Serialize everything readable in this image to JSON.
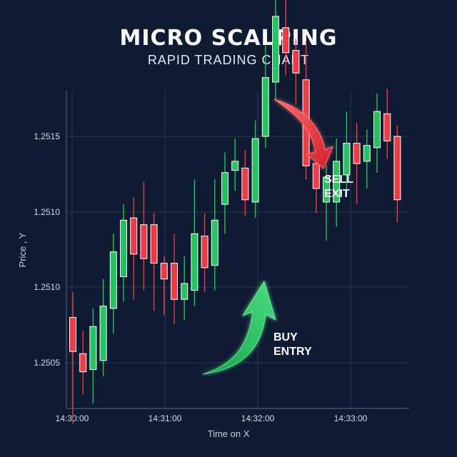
{
  "chart_data": {
    "type": "candlestick",
    "title": "MICRO SCALPING",
    "subtitle": "RAPID TRADING CHART",
    "xlabel": "Time on X",
    "ylabel": "Price , Y",
    "x_ticks": [
      "14:30:00",
      "14:31:00",
      "14:32:00",
      "14:33:00"
    ],
    "y_ticks": [
      "1.2505",
      "1.2510",
      "1.2510",
      "1.2515"
    ],
    "grid": true,
    "colors": {
      "up": "#22c55e",
      "down": "#ef3b45",
      "background": "#0f1b33",
      "grid": "#2a3752"
    },
    "annotations": [
      {
        "text": [
          "SELL",
          "EXIT"
        ],
        "color": "#ef3b45"
      },
      {
        "text": [
          "BUY",
          "ENTRY"
        ],
        "color": "#22c55e"
      }
    ],
    "candles": [
      {
        "dir": "down",
        "open": 1.2507,
        "close": 1.25055,
        "high": 1.25081,
        "low": 1.25023
      },
      {
        "dir": "down",
        "open": 1.25054,
        "close": 1.25046,
        "high": 1.25064,
        "low": 1.25036
      },
      {
        "dir": "up",
        "open": 1.25047,
        "close": 1.25066,
        "high": 1.25074,
        "low": 1.25032
      },
      {
        "dir": "up",
        "open": 1.25051,
        "close": 1.25075,
        "high": 1.25087,
        "low": 1.25044
      },
      {
        "dir": "up",
        "open": 1.25074,
        "close": 1.25099,
        "high": 1.25107,
        "low": 1.25063
      },
      {
        "dir": "up",
        "open": 1.25088,
        "close": 1.25113,
        "high": 1.2512,
        "low": 1.25077
      },
      {
        "dir": "down",
        "open": 1.25114,
        "close": 1.25098,
        "high": 1.25123,
        "low": 1.25078
      },
      {
        "dir": "down",
        "open": 1.25111,
        "close": 1.25096,
        "high": 1.2513,
        "low": 1.25082
      },
      {
        "dir": "down",
        "open": 1.25111,
        "close": 1.25094,
        "high": 1.25116,
        "low": 1.25073
      },
      {
        "dir": "down",
        "open": 1.25094,
        "close": 1.25087,
        "high": 1.25097,
        "low": 1.25071
      },
      {
        "dir": "down",
        "open": 1.25094,
        "close": 1.25078,
        "high": 1.25107,
        "low": 1.25067
      },
      {
        "dir": "up",
        "open": 1.25078,
        "close": 1.25085,
        "high": 1.25097,
        "low": 1.25069
      },
      {
        "dir": "up",
        "open": 1.25082,
        "close": 1.25107,
        "high": 1.25131,
        "low": 1.25075
      },
      {
        "dir": "down",
        "open": 1.25106,
        "close": 1.25092,
        "high": 1.25116,
        "low": 1.25081
      },
      {
        "dir": "up",
        "open": 1.25093,
        "close": 1.25113,
        "high": 1.25131,
        "low": 1.25082
      },
      {
        "dir": "up",
        "open": 1.2512,
        "close": 1.25134,
        "high": 1.25143,
        "low": 1.25107
      },
      {
        "dir": "up",
        "open": 1.25135,
        "close": 1.25139,
        "high": 1.25149,
        "low": 1.25126
      },
      {
        "dir": "down",
        "open": 1.25136,
        "close": 1.25122,
        "high": 1.25144,
        "low": 1.25115
      },
      {
        "dir": "up",
        "open": 1.25121,
        "close": 1.25149,
        "high": 1.25157,
        "low": 1.25114
      },
      {
        "dir": "up",
        "open": 1.2515,
        "close": 1.25176,
        "high": 1.2519,
        "low": 1.25145
      },
      {
        "dir": "up",
        "open": 1.25174,
        "close": 1.25203,
        "high": 1.25218,
        "low": 1.25166
      },
      {
        "dir": "down",
        "open": 1.25198,
        "close": 1.25187,
        "high": 1.25213,
        "low": 1.25177
      },
      {
        "dir": "down",
        "open": 1.25188,
        "close": 1.25178,
        "high": 1.25193,
        "low": 1.25164
      },
      {
        "dir": "down",
        "open": 1.25175,
        "close": 1.25137,
        "high": 1.25192,
        "low": 1.25131
      },
      {
        "dir": "down",
        "open": 1.25138,
        "close": 1.25127,
        "high": 1.25149,
        "low": 1.25116
      },
      {
        "dir": "up",
        "open": 1.25121,
        "close": 1.25132,
        "high": 1.25137,
        "low": 1.25104
      },
      {
        "dir": "up",
        "open": 1.25121,
        "close": 1.25139,
        "high": 1.25149,
        "low": 1.2511
      },
      {
        "dir": "up",
        "open": 1.25133,
        "close": 1.25147,
        "high": 1.25161,
        "low": 1.25124
      },
      {
        "dir": "down",
        "open": 1.25147,
        "close": 1.25138,
        "high": 1.25156,
        "low": 1.2512
      },
      {
        "dir": "up",
        "open": 1.25139,
        "close": 1.25146,
        "high": 1.25153,
        "low": 1.25127
      },
      {
        "dir": "up",
        "open": 1.25145,
        "close": 1.25161,
        "high": 1.25169,
        "low": 1.25134
      },
      {
        "dir": "down",
        "open": 1.2516,
        "close": 1.25148,
        "high": 1.25171,
        "low": 1.2514
      },
      {
        "dir": "down",
        "open": 1.2515,
        "close": 1.25122,
        "high": 1.25155,
        "low": 1.25112
      }
    ]
  }
}
